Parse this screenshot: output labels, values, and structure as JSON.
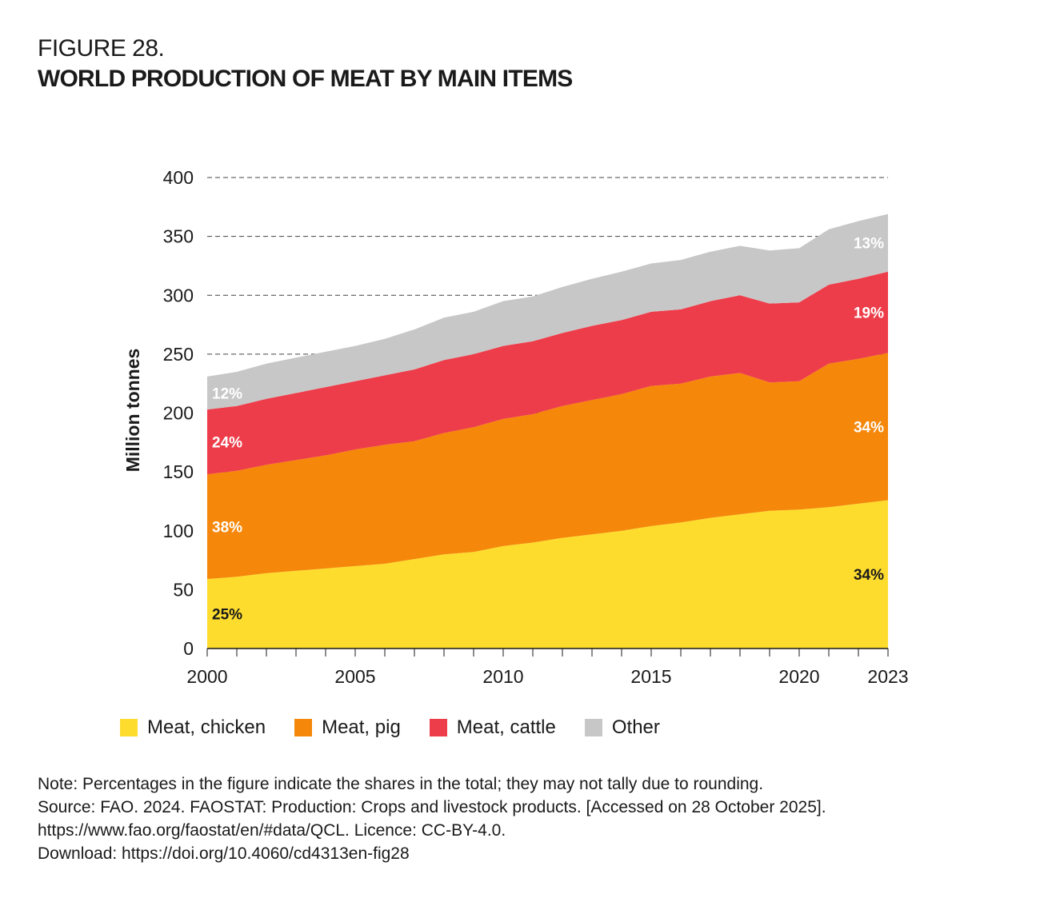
{
  "figure": {
    "label": "FIGURE 28.",
    "title": "WORLD PRODUCTION OF MEAT BY MAIN ITEMS"
  },
  "colors": {
    "chicken": "#FDDC2E",
    "pig": "#F5870A",
    "cattle": "#EE3D4A",
    "other": "#C7C7C7"
  },
  "chart_data": {
    "type": "area",
    "stacked": true,
    "title": "World production of meat by main items",
    "xlabel": "",
    "ylabel": "Million tonnes",
    "ylim": [
      0,
      400
    ],
    "yticks": [
      0,
      50,
      100,
      150,
      200,
      250,
      300,
      350,
      400
    ],
    "xticks": [
      "2000",
      "2005",
      "2010",
      "2015",
      "2020",
      "2023"
    ],
    "grid": "horizontal dashed",
    "legend_position": "bottom",
    "x": [
      2000,
      2001,
      2002,
      2003,
      2004,
      2005,
      2006,
      2007,
      2008,
      2009,
      2010,
      2011,
      2012,
      2013,
      2014,
      2015,
      2016,
      2017,
      2018,
      2019,
      2020,
      2021,
      2022,
      2023
    ],
    "series": [
      {
        "name": "Meat, chicken",
        "key": "chicken",
        "values": [
          59,
          61,
          64,
          66,
          68,
          70,
          72,
          76,
          80,
          82,
          87,
          90,
          94,
          97,
          100,
          104,
          107,
          111,
          114,
          117,
          118,
          120,
          123,
          126
        ]
      },
      {
        "name": "Meat, pig",
        "key": "pig",
        "values": [
          89,
          90,
          92,
          94,
          96,
          99,
          101,
          100,
          103,
          106,
          108,
          109,
          112,
          114,
          116,
          119,
          118,
          120,
          120,
          109,
          109,
          122,
          123,
          125
        ]
      },
      {
        "name": "Meat, cattle",
        "key": "cattle",
        "values": [
          55,
          55,
          56,
          57,
          58,
          58,
          59,
          61,
          62,
          62,
          62,
          62,
          62,
          63,
          63,
          63,
          63,
          64,
          66,
          67,
          67,
          67,
          68,
          69
        ]
      },
      {
        "name": "Other",
        "key": "other",
        "values": [
          28,
          29,
          30,
          30,
          30,
          30,
          31,
          34,
          36,
          36,
          38,
          38,
          39,
          40,
          41,
          41,
          42,
          42,
          42,
          45,
          46,
          47,
          49,
          49
        ]
      }
    ],
    "annotations": [
      {
        "series": "chicken",
        "year": 2000,
        "text": "25%"
      },
      {
        "series": "pig",
        "year": 2000,
        "text": "38%"
      },
      {
        "series": "cattle",
        "year": 2000,
        "text": "24%"
      },
      {
        "series": "other",
        "year": 2000,
        "text": "12%"
      },
      {
        "series": "chicken",
        "year": 2023,
        "text": "34%"
      },
      {
        "series": "pig",
        "year": 2023,
        "text": "34%"
      },
      {
        "series": "cattle",
        "year": 2023,
        "text": "19%"
      },
      {
        "series": "other",
        "year": 2023,
        "text": "13%"
      }
    ]
  },
  "legend": [
    {
      "label": "Meat, chicken",
      "key": "chicken"
    },
    {
      "label": "Meat, pig",
      "key": "pig"
    },
    {
      "label": "Meat, cattle",
      "key": "cattle"
    },
    {
      "label": "Other",
      "key": "other"
    }
  ],
  "notes": {
    "note": "Note: Percentages in the figure indicate the shares in the total; they may not tally due to rounding.",
    "source": "Source: FAO. 2024. FAOSTAT: Production: Crops and livestock products. [Accessed on 28 October 2025].",
    "source_url": "https://www.fao.org/faostat/en/#data/QCL. Licence: CC-BY-4.0.",
    "download": "Download: https://doi.org/10.4060/cd4313en-fig28"
  }
}
